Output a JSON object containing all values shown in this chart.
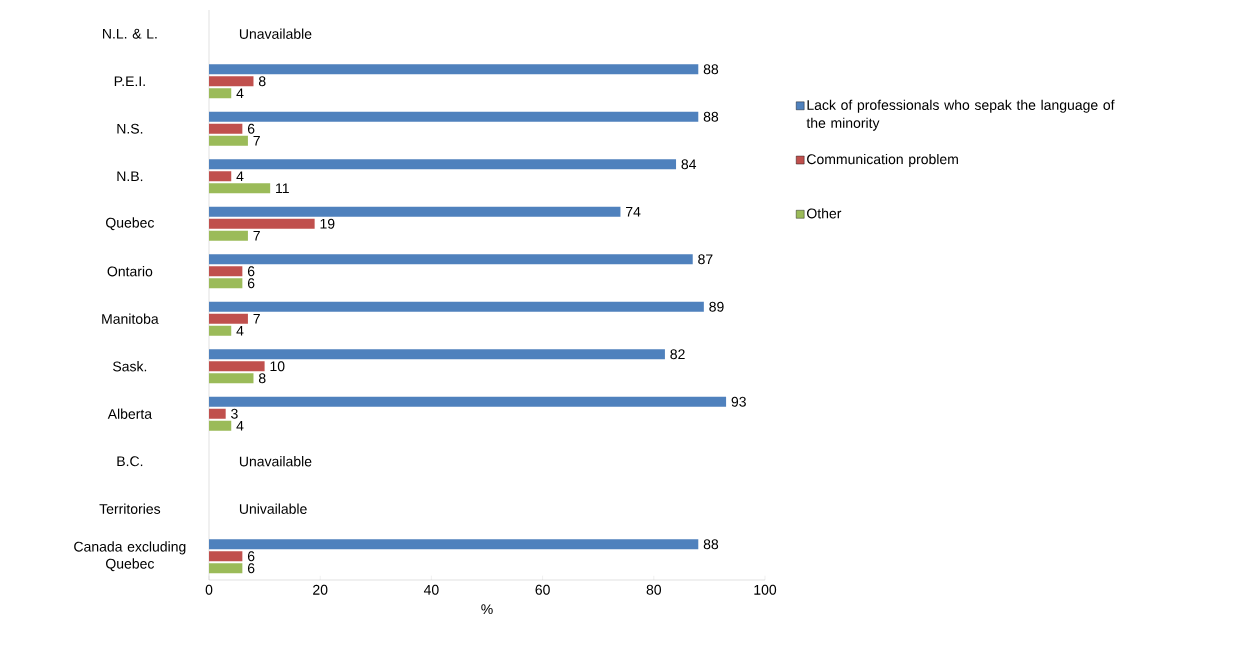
{
  "chart_data": {
    "type": "bar",
    "orientation": "horizontal",
    "xlabel": "%",
    "categories": [
      "N.L. & L.",
      "P.E.I.",
      "N.S.",
      "N.B.",
      "Quebec",
      "Ontario",
      "Manitoba",
      "Sask.",
      "Alberta",
      "B.C.",
      "Territories",
      "Canada excluding Quebec"
    ],
    "series": [
      {
        "name": "Lack of professionals who sepak the language of the minority",
        "color": "#4f81bd",
        "values": [
          null,
          88,
          88,
          84,
          74,
          87,
          89,
          82,
          93,
          null,
          null,
          88
        ]
      },
      {
        "name": "Communication problem",
        "color": "#c0504d",
        "values": [
          null,
          8,
          6,
          4,
          19,
          6,
          7,
          10,
          3,
          null,
          null,
          6
        ]
      },
      {
        "name": "Other",
        "color": "#9bbb59",
        "values": [
          null,
          4,
          7,
          11,
          7,
          6,
          4,
          8,
          4,
          null,
          null,
          6
        ]
      }
    ],
    "xlim": [
      0,
      100
    ],
    "xticks": [
      0,
      20,
      40,
      60,
      80,
      100
    ],
    "data_labels": true,
    "legend": "right",
    "annotations": [
      "Unavailable",
      "Unavailable",
      "Univailable"
    ]
  }
}
